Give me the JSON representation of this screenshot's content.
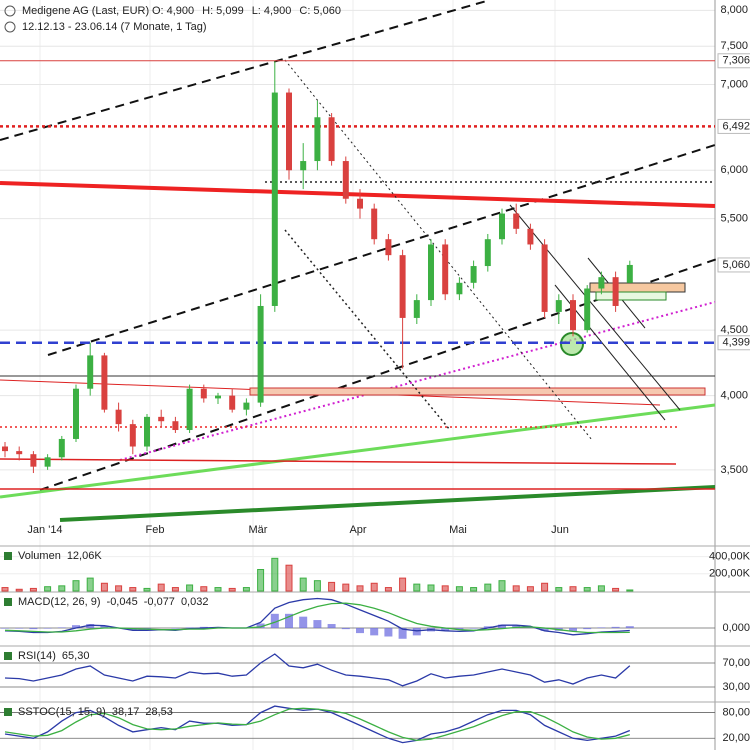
{
  "chart_data": {
    "type": "candlestick",
    "title": "Medigene AG (Last, EUR)",
    "header_values": [
      {
        "name": "O:",
        "value": 4.9,
        "label": "4,900"
      },
      {
        "name": "H:",
        "value": 5.099,
        "label": "5,099"
      },
      {
        "name": "L:",
        "value": 4.9,
        "label": "4,900"
      },
      {
        "name": "C:",
        "value": 5.06,
        "label": "5,060"
      }
    ],
    "subtitle": "12.12.13 - 23.06.14 (7 Monate, 1 Tag)",
    "x_axis_labels": [
      "Jan '14",
      "Feb",
      "Mär",
      "Apr",
      "Mai",
      "Jun"
    ],
    "log_scale": true,
    "ylim": [
      3.085,
      8.15
    ],
    "yticks": [
      {
        "value": 8,
        "label": "8,000"
      },
      {
        "value": 7.5,
        "label": "7,500"
      },
      {
        "value": 7,
        "label": "7,000"
      },
      {
        "value": 6,
        "label": "6,000"
      },
      {
        "value": 5.5,
        "label": "5,500"
      },
      {
        "value": 4.5,
        "label": "4,500"
      },
      {
        "value": 4,
        "label": "4,000"
      },
      {
        "value": 3.5,
        "label": "3,500"
      }
    ],
    "grid": true,
    "up_color": "#3cb043",
    "down_color": "#d9413f",
    "open": [
      3.65,
      3.62,
      3.6,
      3.52,
      3.58,
      3.7,
      4.05,
      4.3,
      3.9,
      3.8,
      3.65,
      3.85,
      3.82,
      3.76,
      4.05,
      3.98,
      4.0,
      3.9,
      3.95,
      4.7,
      6.9,
      6.0,
      6.1,
      6.6,
      6.1,
      5.7,
      5.6,
      5.3,
      5.15,
      4.6,
      4.75,
      5.25,
      4.8,
      4.9,
      5.05,
      5.3,
      5.55,
      5.4,
      5.25,
      4.65,
      4.75,
      4.5,
      4.85,
      4.95,
      4.9
    ],
    "high": [
      3.68,
      3.65,
      3.62,
      3.6,
      3.72,
      4.08,
      4.4,
      4.32,
      3.95,
      3.83,
      3.87,
      3.9,
      3.85,
      4.08,
      4.08,
      4.02,
      4.05,
      3.98,
      4.8,
      7.3,
      6.95,
      6.3,
      6.8,
      6.65,
      6.15,
      5.8,
      5.65,
      5.35,
      5.2,
      4.8,
      5.3,
      5.3,
      4.95,
      5.1,
      5.35,
      5.6,
      5.65,
      5.45,
      5.3,
      4.8,
      4.8,
      4.88,
      5.0,
      5.0,
      5.099
    ],
    "low": [
      3.58,
      3.56,
      3.48,
      3.5,
      3.56,
      3.68,
      4.0,
      3.88,
      3.75,
      3.6,
      3.62,
      3.78,
      3.74,
      3.74,
      3.95,
      3.94,
      3.88,
      3.86,
      3.92,
      4.65,
      5.9,
      5.8,
      6.0,
      6.05,
      5.65,
      5.5,
      5.25,
      5.1,
      4.2,
      4.55,
      4.7,
      4.75,
      4.75,
      4.85,
      5.0,
      5.25,
      5.35,
      5.2,
      4.6,
      4.55,
      4.45,
      4.48,
      4.8,
      4.65,
      4.9
    ],
    "close": [
      3.62,
      3.6,
      3.52,
      3.58,
      3.7,
      4.05,
      4.3,
      3.9,
      3.8,
      3.65,
      3.85,
      3.82,
      3.76,
      4.05,
      3.98,
      4.0,
      3.9,
      3.95,
      4.7,
      6.9,
      6.0,
      6.1,
      6.6,
      6.1,
      5.7,
      5.6,
      5.3,
      5.15,
      4.6,
      4.75,
      5.25,
      4.8,
      4.9,
      5.05,
      5.3,
      5.55,
      5.4,
      5.25,
      4.65,
      4.75,
      4.5,
      4.85,
      4.95,
      4.7,
      5.06
    ],
    "price_markers": [
      {
        "value": 7.306,
        "label": "7,306",
        "color": "#d9413f",
        "style": "solid"
      },
      {
        "value": 6.492,
        "label": "6,492",
        "color": "#e02020",
        "style": "dotted"
      },
      {
        "value": 5.06,
        "label": "5,060",
        "color": "#333333",
        "style": "none"
      },
      {
        "value": 4.399,
        "label": "4,399",
        "color": "#3040d0",
        "style": "dashed"
      }
    ],
    "volume": {
      "title": "Volumen",
      "readout": "12,06K",
      "ylim": [
        0,
        500
      ],
      "yticks": [
        {
          "value": 400,
          "label": "400,00K"
        },
        {
          "value": 200,
          "label": "200,00K"
        }
      ],
      "values": [
        40,
        20,
        30,
        50,
        60,
        120,
        150,
        90,
        60,
        40,
        30,
        80,
        40,
        70,
        50,
        40,
        30,
        40,
        250,
        380,
        300,
        150,
        120,
        100,
        80,
        60,
        90,
        40,
        150,
        80,
        70,
        60,
        50,
        40,
        80,
        120,
        60,
        50,
        90,
        40,
        50,
        40,
        60,
        30,
        12.06
      ]
    },
    "macd": {
      "title": "MACD(12, 26, 9)",
      "readout": [
        {
          "value": -0.045,
          "label": "-0,045"
        },
        {
          "value": -0.077,
          "label": "-0,077"
        },
        {
          "value": 0.032,
          "label": "0,032"
        }
      ],
      "ylim": [
        -0.3,
        0.6
      ],
      "yticks": [
        {
          "value": 0,
          "label": "0,000"
        }
      ],
      "series": [
        {
          "color": "#2b3aa8",
          "values": [
            -0.05,
            -0.06,
            -0.08,
            -0.08,
            -0.06,
            0.0,
            0.05,
            0.04,
            0.0,
            -0.04,
            -0.04,
            -0.03,
            -0.04,
            -0.01,
            0.0,
            0.01,
            0.0,
            0.0,
            0.1,
            0.35,
            0.45,
            0.5,
            0.52,
            0.5,
            0.42,
            0.32,
            0.22,
            0.12,
            -0.02,
            -0.05,
            -0.03,
            -0.05,
            -0.06,
            -0.05,
            0.0,
            0.05,
            0.05,
            0.03,
            -0.05,
            -0.08,
            -0.12,
            -0.1,
            -0.07,
            -0.06,
            -0.045
          ]
        },
        {
          "color": "#3cb043",
          "values": [
            -0.04,
            -0.05,
            -0.06,
            -0.07,
            -0.07,
            -0.05,
            -0.02,
            0.0,
            0.0,
            -0.01,
            -0.02,
            -0.03,
            -0.03,
            -0.02,
            -0.02,
            0.0,
            0.0,
            0.0,
            0.02,
            0.1,
            0.2,
            0.3,
            0.38,
            0.43,
            0.44,
            0.41,
            0.35,
            0.27,
            0.17,
            0.08,
            0.03,
            0.0,
            -0.03,
            -0.04,
            -0.03,
            -0.01,
            0.01,
            0.02,
            0.0,
            -0.03,
            -0.06,
            -0.08,
            -0.08,
            -0.08,
            -0.077
          ]
        }
      ],
      "histogram": {
        "color": "#6f6fe0",
        "values": [
          -0.01,
          -0.01,
          -0.02,
          -0.01,
          0.01,
          0.05,
          0.07,
          0.04,
          0.0,
          -0.03,
          -0.02,
          0.0,
          -0.01,
          0.01,
          0.02,
          0.01,
          0,
          0,
          0.08,
          0.25,
          0.25,
          0.2,
          0.14,
          0.07,
          -0.02,
          -0.09,
          -0.13,
          -0.15,
          -0.19,
          -0.13,
          -0.06,
          -0.05,
          -0.03,
          -0.01,
          0.03,
          0.06,
          0.04,
          0.01,
          -0.05,
          -0.05,
          -0.06,
          -0.02,
          0.01,
          0.02,
          0.032
        ]
      }
    },
    "rsi": {
      "title": "RSI(14)",
      "readout": [
        {
          "value": 65.3,
          "label": "65,30"
        }
      ],
      "ylim": [
        5,
        95
      ],
      "yticks": [
        {
          "value": 70,
          "label": "70,00"
        },
        {
          "value": 30,
          "label": "30,00"
        }
      ],
      "series": [
        {
          "color": "#2b3aa8",
          "values": [
            45,
            44,
            40,
            45,
            50,
            60,
            65,
            50,
            45,
            40,
            48,
            47,
            45,
            55,
            52,
            53,
            48,
            50,
            70,
            85,
            65,
            62,
            68,
            58,
            50,
            48,
            45,
            42,
            32,
            40,
            52,
            45,
            48,
            50,
            55,
            60,
            55,
            50,
            38,
            42,
            35,
            45,
            50,
            45,
            65.3
          ]
        }
      ]
    },
    "sstoc": {
      "title": "SSTOC(15, 15, 9)",
      "readout": [
        {
          "value": 38.17,
          "label": "38,17"
        },
        {
          "value": 28.53,
          "label": "28,53"
        }
      ],
      "ylim": [
        -5,
        100
      ],
      "yticks": [
        {
          "value": 80,
          "label": "80,00"
        },
        {
          "value": 20,
          "label": "20,00"
        }
      ],
      "series": [
        {
          "color": "#2b3aa8",
          "values": [
            30,
            25,
            20,
            35,
            60,
            80,
            85,
            70,
            50,
            35,
            40,
            45,
            40,
            60,
            55,
            55,
            50,
            52,
            80,
            95,
            90,
            85,
            88,
            80,
            65,
            50,
            35,
            20,
            10,
            15,
            30,
            35,
            45,
            60,
            75,
            85,
            85,
            75,
            50,
            35,
            20,
            15,
            20,
            25,
            38.17
          ]
        },
        {
          "color": "#3cb043",
          "values": [
            35,
            30,
            25,
            27,
            38,
            58,
            75,
            78,
            68,
            52,
            42,
            40,
            42,
            48,
            52,
            56,
            53,
            52,
            60,
            75,
            88,
            90,
            88,
            84,
            78,
            65,
            50,
            35,
            22,
            15,
            18,
            27,
            37,
            47,
            60,
            73,
            82,
            82,
            70,
            53,
            35,
            23,
            18,
            20,
            28.53
          ]
        }
      ]
    }
  }
}
